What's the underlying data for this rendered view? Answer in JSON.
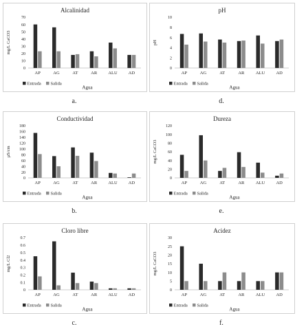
{
  "chart_data": [
    {
      "type": "bar",
      "title": "Alcalinidad",
      "ylabel": "mg/L CaCO3",
      "xlabel": "Agua",
      "caption": "a.",
      "categories": [
        "AP",
        "AG",
        "AT",
        "AR",
        "ALU",
        "AD"
      ],
      "ylim": [
        0,
        70
      ],
      "yticks": [
        0,
        10,
        20,
        30,
        40,
        50,
        60,
        70
      ],
      "series": [
        {
          "name": "Entrada",
          "values": [
            60,
            56,
            18,
            23,
            35,
            18
          ]
        },
        {
          "name": "Salida",
          "values": [
            23,
            23,
            19,
            16,
            27,
            18
          ]
        }
      ],
      "legend": "bottom-left",
      "grid": false
    },
    {
      "type": "bar",
      "title": "pH",
      "ylabel": "pH",
      "xlabel": "Agua",
      "caption": "d.",
      "categories": [
        "AP",
        "AG",
        "AT",
        "AR",
        "ALU",
        "AD"
      ],
      "ylim": [
        0,
        10
      ],
      "yticks": [
        0,
        2,
        4,
        6,
        8,
        10
      ],
      "series": [
        {
          "name": "Entrada",
          "values": [
            6.7,
            6.8,
            5.6,
            5.3,
            6.4,
            5.3
          ]
        },
        {
          "name": "Salida",
          "values": [
            4.6,
            5.2,
            5.0,
            5.4,
            4.8,
            5.6
          ]
        }
      ],
      "legend": "bottom-left",
      "grid": false
    },
    {
      "type": "bar",
      "title": "Conductividad",
      "ylabel": "µS/cm",
      "xlabel": "Agua",
      "caption": "b.",
      "categories": [
        "AP",
        "AG",
        "AT",
        "AR",
        "ALU",
        "AD"
      ],
      "ylim": [
        0,
        180
      ],
      "yticks": [
        0,
        20,
        40,
        60,
        80,
        100,
        120,
        140,
        160,
        180
      ],
      "series": [
        {
          "name": "Entrada",
          "values": [
            155,
            75,
            105,
            87,
            17,
            2
          ]
        },
        {
          "name": "Salida",
          "values": [
            82,
            40,
            76,
            58,
            15,
            15
          ]
        }
      ],
      "legend": "bottom-left",
      "grid": false
    },
    {
      "type": "bar",
      "title": "Dureza",
      "ylabel": "mg/L CaCO3",
      "xlabel": "Agua",
      "caption": "e.",
      "categories": [
        "AP",
        "AG",
        "AT",
        "AR",
        "ALU",
        "AD"
      ],
      "ylim": [
        0,
        120
      ],
      "yticks": [
        0,
        20,
        40,
        60,
        80,
        100,
        120
      ],
      "series": [
        {
          "name": "Entrada",
          "values": [
            53,
            98,
            16,
            59,
            35,
            5
          ]
        },
        {
          "name": "Salida",
          "values": [
            16,
            40,
            23,
            25,
            12,
            10
          ]
        }
      ],
      "legend": "bottom-left",
      "grid": false
    },
    {
      "type": "bar",
      "title": "Cloro libre",
      "ylabel": "mg/L Cl2",
      "xlabel": "Agua",
      "caption": "c.",
      "categories": [
        "AP",
        "AG",
        "AT",
        "AR",
        "ALU",
        "AD"
      ],
      "ylim": [
        0,
        0.7
      ],
      "yticks": [
        0,
        0.1,
        0.2,
        0.3,
        0.4,
        0.5,
        0.6,
        0.7
      ],
      "series": [
        {
          "name": "Entrada",
          "values": [
            0.45,
            0.65,
            0.23,
            0.11,
            0.02,
            0.02
          ]
        },
        {
          "name": "Salida",
          "values": [
            0.18,
            0.06,
            0.09,
            0.09,
            0.02,
            0.02
          ]
        }
      ],
      "legend": "bottom-left",
      "grid": false
    },
    {
      "type": "bar",
      "title": "Acidez",
      "ylabel": "mg/L CaCO3",
      "xlabel": "Agua",
      "caption": "f.",
      "categories": [
        "AP",
        "AG",
        "AT",
        "AR",
        "ALU",
        "AD"
      ],
      "ylim": [
        0,
        30
      ],
      "yticks": [
        0,
        5,
        10,
        15,
        20,
        25,
        30
      ],
      "series": [
        {
          "name": "Entrada",
          "values": [
            25,
            15,
            5,
            5,
            5,
            10
          ]
        },
        {
          "name": "Salida",
          "values": [
            5,
            5,
            10,
            10,
            5,
            10
          ]
        }
      ],
      "legend": "bottom-left",
      "grid": false
    }
  ],
  "colors": {
    "Entrada": "#2b2b2b",
    "Salida": "#8c8c8c"
  }
}
